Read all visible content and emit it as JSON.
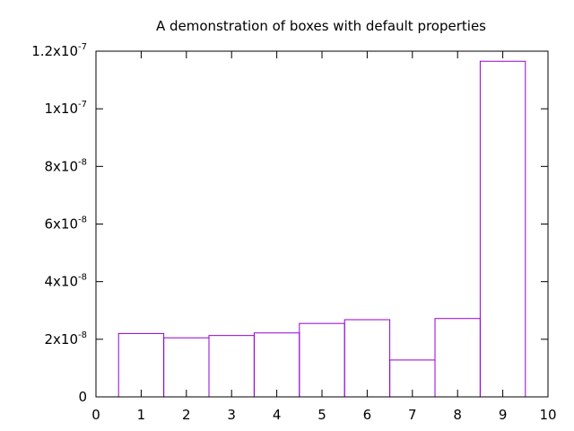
{
  "chart_data": {
    "type": "bar",
    "title": "A demonstration of boxes with default properties",
    "xlabel": "",
    "ylabel": "",
    "x": [
      1,
      2,
      3,
      4,
      5,
      6,
      7,
      8,
      9
    ],
    "values": [
      2.2e-08,
      2.05e-08,
      2.13e-08,
      2.22e-08,
      2.55e-08,
      2.68e-08,
      1.28e-08,
      2.72e-08,
      1.165e-07
    ],
    "xlim": [
      0,
      10
    ],
    "ylim": [
      0,
      1.2e-07
    ],
    "x_ticks": [
      "0",
      "1",
      "2",
      "3",
      "4",
      "5",
      "6",
      "7",
      "8",
      "9",
      "10"
    ],
    "y_ticks": [
      {
        "mantissa": "0",
        "exp": ""
      },
      {
        "mantissa": "2x10",
        "exp": "-8"
      },
      {
        "mantissa": "4x10",
        "exp": "-8"
      },
      {
        "mantissa": "6x10",
        "exp": "-8"
      },
      {
        "mantissa": "8x10",
        "exp": "-8"
      },
      {
        "mantissa": "1x10",
        "exp": "-7"
      },
      {
        "mantissa": "1.2x10",
        "exp": "-7"
      }
    ],
    "y_tick_values": [
      0,
      2e-08,
      4e-08,
      6e-08,
      8e-08,
      1e-07,
      1.2e-07
    ],
    "grid": false,
    "legend": "none",
    "box_color": "#9400d3",
    "box_fill": "none"
  }
}
